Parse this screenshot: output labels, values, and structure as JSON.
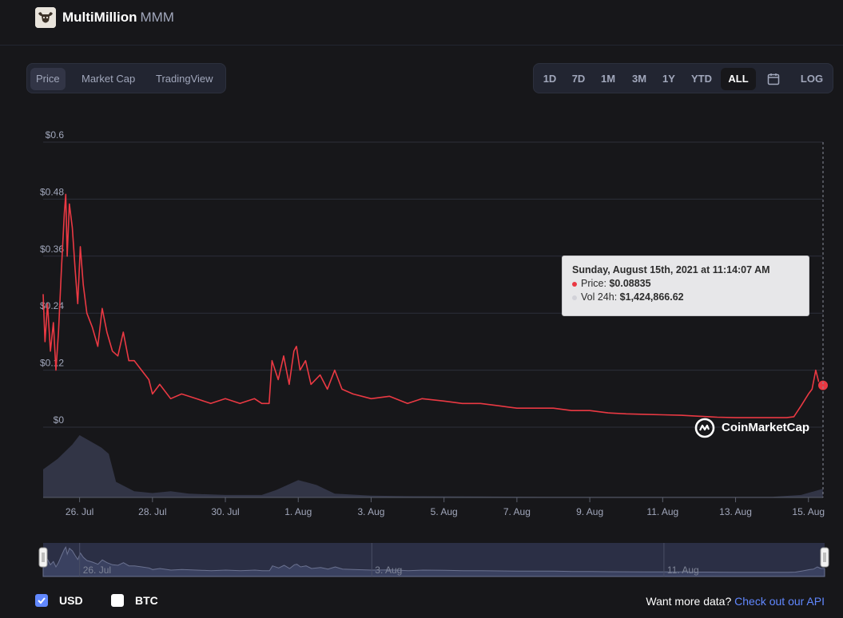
{
  "header": {
    "name": "MultiMillion",
    "symbol": "MMM"
  },
  "chart_tabs": [
    "Price",
    "Market Cap",
    "TradingView"
  ],
  "active_tab": "Price",
  "ranges": [
    "1D",
    "7D",
    "1M",
    "3M",
    "1Y",
    "YTD",
    "ALL"
  ],
  "active_range": "ALL",
  "log_label": "LOG",
  "colors": {
    "price_line": "#ea3943",
    "volume_area": "#323546",
    "navigator": "#32364e",
    "accent": "#6188ff"
  },
  "tooltip": {
    "date": "Sunday, August 15th, 2021 at 11:14:07 AM",
    "price_label": "Price:",
    "price_value": "$0.08835",
    "volume_label": "Vol 24h:",
    "volume_value": "$1,424,866.62"
  },
  "watermark": "CoinMarketCap",
  "currencies": [
    {
      "label": "USD",
      "checked": true
    },
    {
      "label": "BTC",
      "checked": false
    }
  ],
  "footer": {
    "prompt": "Want more data?",
    "link": "Check out our API"
  },
  "chart_data": {
    "type": "line",
    "y_ticks": [
      "$0",
      "$0.12",
      "$0.24",
      "$0.36",
      "$0.48",
      "$0.6"
    ],
    "ylim": [
      0,
      0.6
    ],
    "x_ticks": [
      "26. Jul",
      "28. Jul",
      "30. Jul",
      "1. Aug",
      "3. Aug",
      "5. Aug",
      "7. Aug",
      "9. Aug",
      "11. Aug",
      "13. Aug",
      "15. Aug"
    ],
    "x_tick_days": [
      1,
      3,
      5,
      7,
      9,
      11,
      13,
      15,
      17,
      19,
      21
    ],
    "xlim_days": [
      0.0,
      21.4
    ],
    "grid": true,
    "series": [
      {
        "points": [
          [
            0.0,
            0.28
          ],
          [
            0.05,
            0.18
          ],
          [
            0.12,
            0.26
          ],
          [
            0.2,
            0.16
          ],
          [
            0.28,
            0.22
          ],
          [
            0.35,
            0.12
          ],
          [
            0.42,
            0.2
          ],
          [
            0.5,
            0.33
          ],
          [
            0.58,
            0.45
          ],
          [
            0.62,
            0.49
          ],
          [
            0.66,
            0.36
          ],
          [
            0.72,
            0.47
          ],
          [
            0.8,
            0.42
          ],
          [
            0.88,
            0.33
          ],
          [
            0.95,
            0.26
          ],
          [
            1.02,
            0.38
          ],
          [
            1.1,
            0.3
          ],
          [
            1.2,
            0.24
          ],
          [
            1.35,
            0.21
          ],
          [
            1.5,
            0.17
          ],
          [
            1.62,
            0.25
          ],
          [
            1.75,
            0.2
          ],
          [
            1.9,
            0.16
          ],
          [
            2.05,
            0.15
          ],
          [
            2.2,
            0.2
          ],
          [
            2.35,
            0.14
          ],
          [
            2.5,
            0.14
          ],
          [
            2.7,
            0.12
          ],
          [
            2.9,
            0.1
          ],
          [
            3.0,
            0.07
          ],
          [
            3.2,
            0.09
          ],
          [
            3.5,
            0.06
          ],
          [
            3.8,
            0.07
          ],
          [
            4.2,
            0.06
          ],
          [
            4.6,
            0.05
          ],
          [
            5.0,
            0.06
          ],
          [
            5.4,
            0.05
          ],
          [
            5.8,
            0.06
          ],
          [
            6.0,
            0.05
          ],
          [
            6.2,
            0.05
          ],
          [
            6.28,
            0.14
          ],
          [
            6.45,
            0.1
          ],
          [
            6.6,
            0.15
          ],
          [
            6.75,
            0.09
          ],
          [
            6.88,
            0.16
          ],
          [
            6.95,
            0.17
          ],
          [
            7.05,
            0.12
          ],
          [
            7.2,
            0.14
          ],
          [
            7.35,
            0.09
          ],
          [
            7.6,
            0.11
          ],
          [
            7.8,
            0.08
          ],
          [
            8.0,
            0.12
          ],
          [
            8.2,
            0.08
          ],
          [
            8.5,
            0.07
          ],
          [
            9.0,
            0.06
          ],
          [
            9.5,
            0.065
          ],
          [
            10.0,
            0.05
          ],
          [
            10.4,
            0.06
          ],
          [
            11.0,
            0.055
          ],
          [
            11.5,
            0.05
          ],
          [
            12.0,
            0.05
          ],
          [
            12.5,
            0.045
          ],
          [
            13.0,
            0.04
          ],
          [
            13.5,
            0.04
          ],
          [
            14.0,
            0.04
          ],
          [
            14.5,
            0.035
          ],
          [
            15.0,
            0.035
          ],
          [
            15.5,
            0.03
          ],
          [
            16.0,
            0.028
          ],
          [
            16.5,
            0.027
          ],
          [
            17.0,
            0.026
          ],
          [
            17.5,
            0.025
          ],
          [
            18.0,
            0.023
          ],
          [
            18.5,
            0.021
          ],
          [
            19.0,
            0.02
          ],
          [
            19.5,
            0.02
          ],
          [
            20.0,
            0.02
          ],
          [
            20.4,
            0.02
          ],
          [
            20.6,
            0.022
          ],
          [
            20.8,
            0.045
          ],
          [
            21.0,
            0.07
          ],
          [
            21.1,
            0.08
          ],
          [
            21.2,
            0.12
          ],
          [
            21.3,
            0.09
          ],
          [
            21.4,
            0.088
          ]
        ]
      }
    ],
    "volume": {
      "points": [
        [
          0.0,
          0.45
        ],
        [
          0.4,
          0.62
        ],
        [
          0.8,
          0.85
        ],
        [
          1.0,
          1.0
        ],
        [
          1.3,
          0.9
        ],
        [
          1.6,
          0.8
        ],
        [
          1.8,
          0.7
        ],
        [
          2.0,
          0.25
        ],
        [
          2.5,
          0.1
        ],
        [
          3.0,
          0.07
        ],
        [
          3.5,
          0.1
        ],
        [
          4.0,
          0.06
        ],
        [
          5.0,
          0.04
        ],
        [
          6.0,
          0.04
        ],
        [
          6.4,
          0.12
        ],
        [
          7.0,
          0.28
        ],
        [
          7.5,
          0.2
        ],
        [
          8.0,
          0.06
        ],
        [
          9.0,
          0.03
        ],
        [
          10.0,
          0.02
        ],
        [
          12.0,
          0.015
        ],
        [
          14.0,
          0.01
        ],
        [
          16.0,
          0.01
        ],
        [
          18.0,
          0.01
        ],
        [
          20.0,
          0.01
        ],
        [
          20.8,
          0.04
        ],
        [
          21.4,
          0.14
        ]
      ]
    }
  }
}
